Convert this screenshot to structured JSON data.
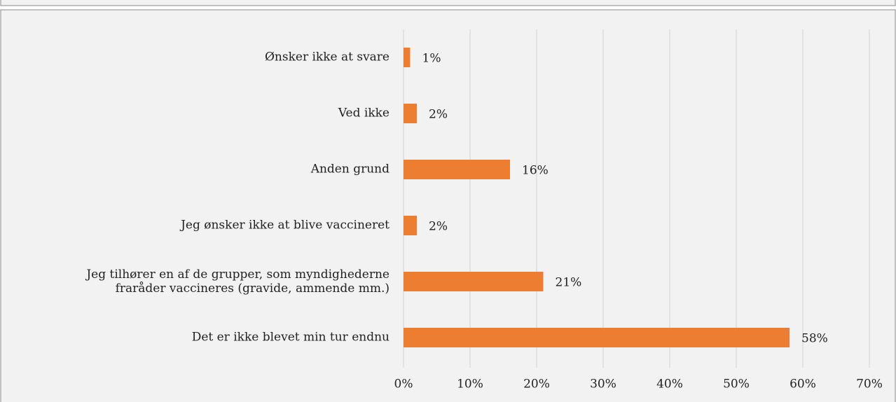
{
  "chart_data": {
    "type": "bar",
    "orientation": "horizontal",
    "categories": [
      "Ønsker ikke at svare",
      "Ved ikke",
      "Anden grund",
      "Jeg ønsker ikke at blive vaccineret",
      "Jeg tilhører en af de grupper, som myndighederne\nfraråder vaccineres (gravide, ammende mm.)",
      "Det er ikke blevet min tur endnu"
    ],
    "values": [
      1,
      2,
      16,
      2,
      21,
      58
    ],
    "value_labels": [
      "1%",
      "2%",
      "16%",
      "2%",
      "21%",
      "58%"
    ],
    "color": "#ed7d31",
    "xlim": [
      0,
      70
    ],
    "xticks": [
      {
        "value": 0,
        "label": "0%"
      },
      {
        "value": 10,
        "label": "10%"
      },
      {
        "value": 20,
        "label": "20%"
      },
      {
        "value": 30,
        "label": "30%"
      },
      {
        "value": 40,
        "label": "40%"
      },
      {
        "value": 50,
        "label": "50%"
      },
      {
        "value": 60,
        "label": "60%"
      },
      {
        "value": 70,
        "label": "70%"
      }
    ],
    "grid": true
  }
}
